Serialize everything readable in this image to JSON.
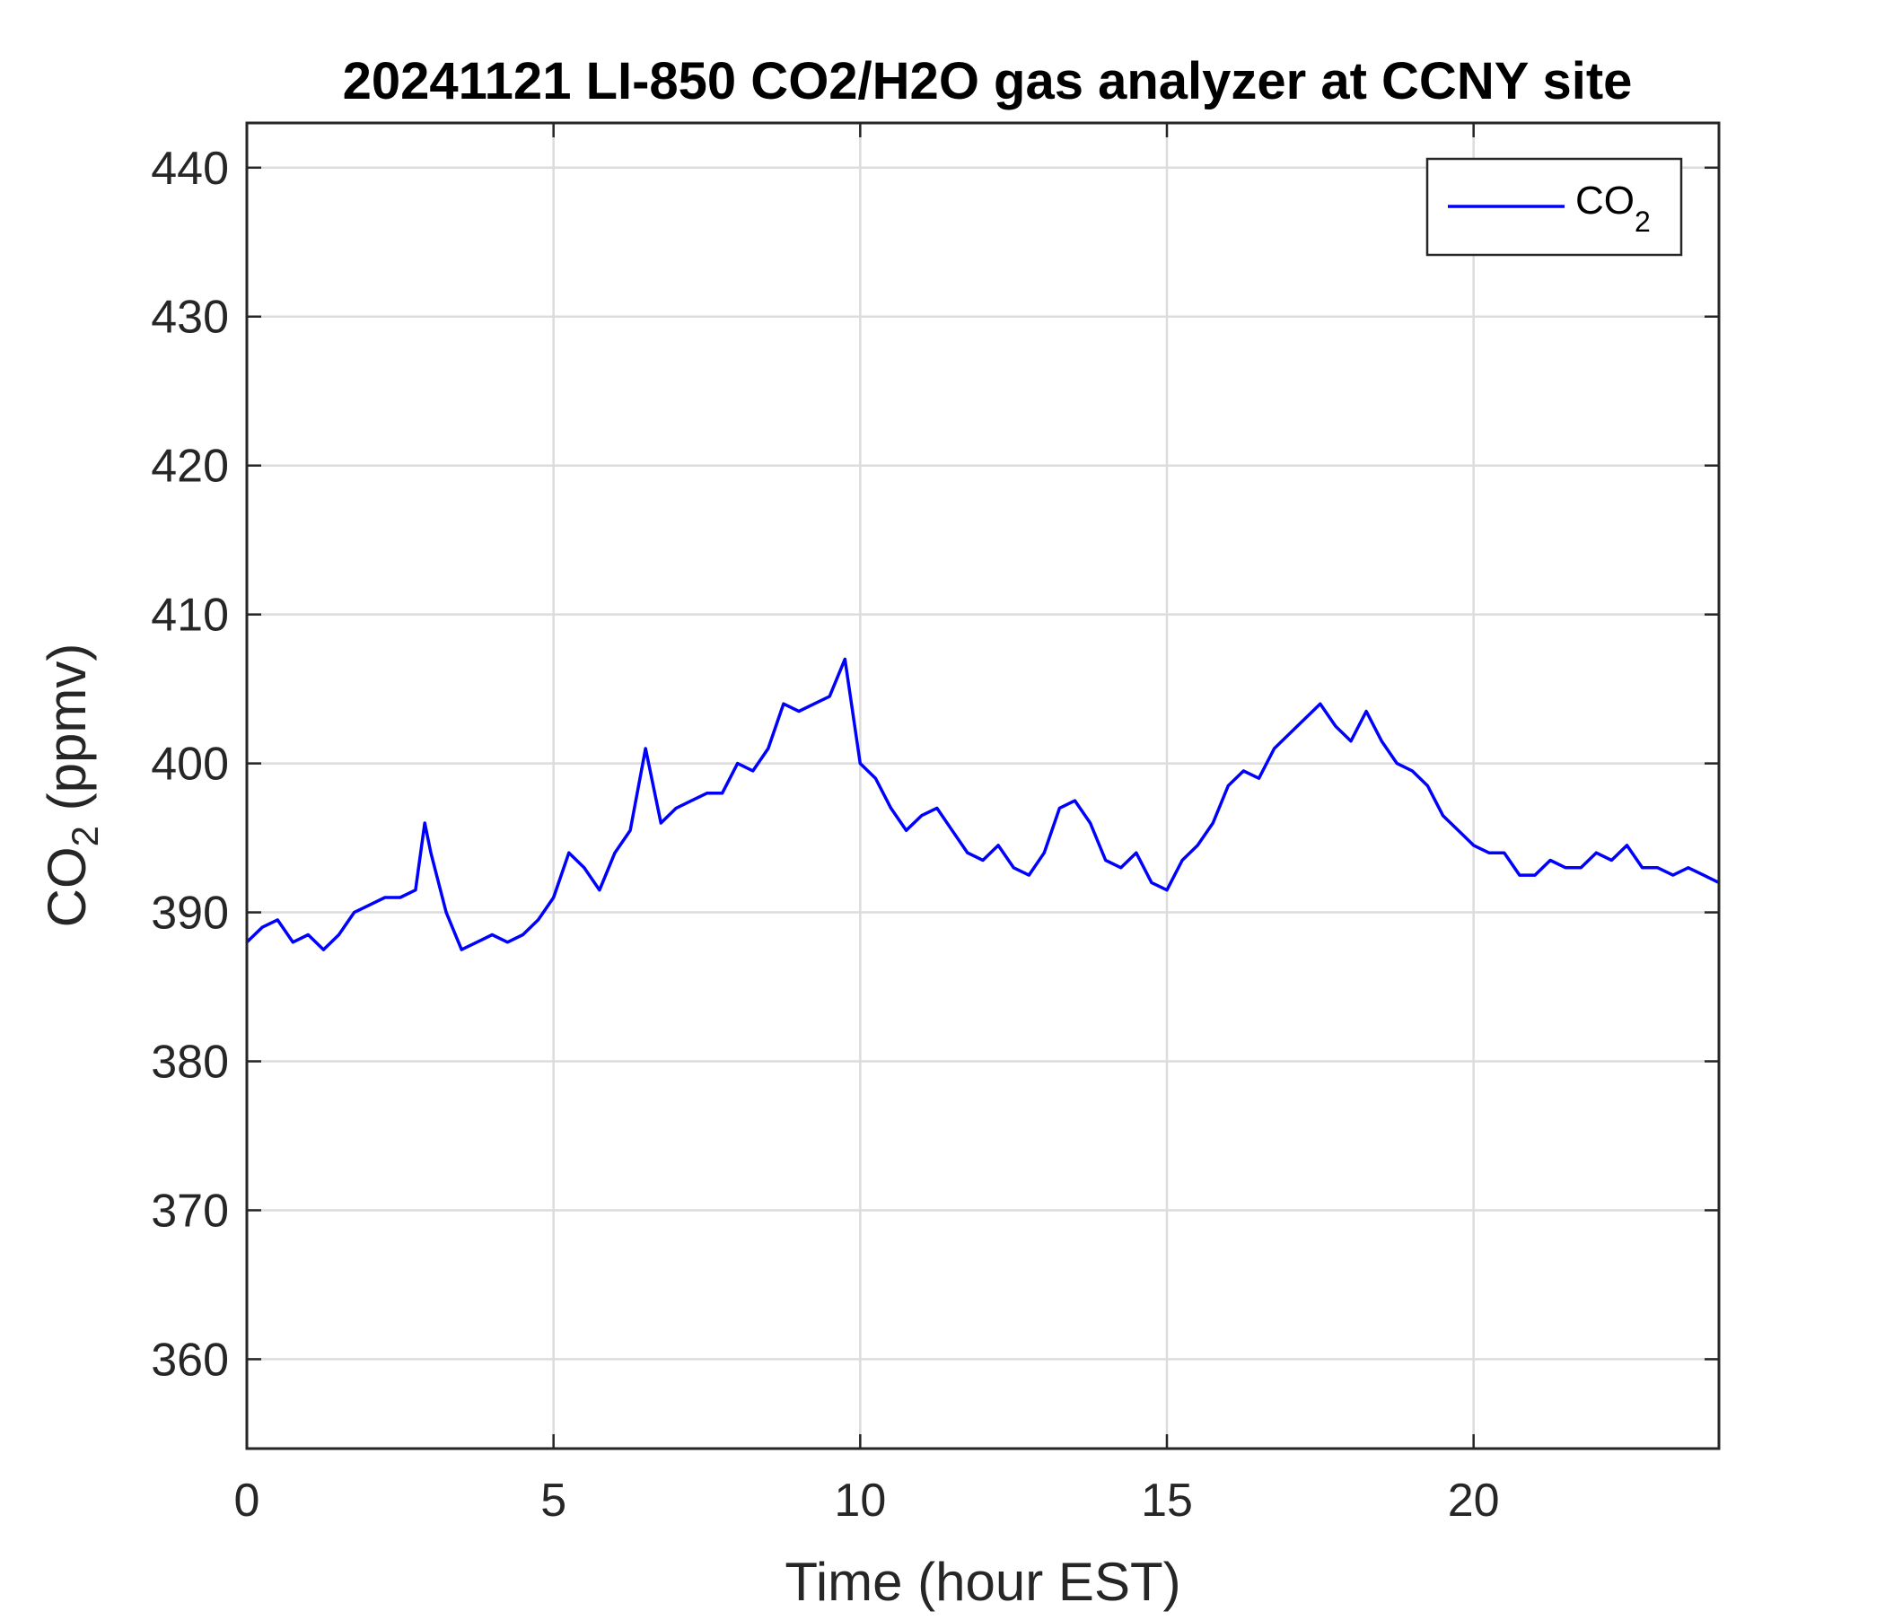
{
  "chart_data": {
    "type": "line",
    "title": "20241121 LI-850 CO2/H2O gas analyzer at CCNY site",
    "xlabel": "Time (hour EST)",
    "ylabel_main": "CO",
    "ylabel_sub": "2",
    "ylabel_units": " (ppmv)",
    "xlim": [
      0,
      24
    ],
    "ylim": [
      354,
      443
    ],
    "xticks": [
      0,
      5,
      10,
      15,
      20
    ],
    "yticks": [
      360,
      370,
      380,
      390,
      400,
      410,
      420,
      430,
      440
    ],
    "grid": true,
    "legend_position": "top-right",
    "series": [
      {
        "name_main": "CO",
        "name_sub": "2",
        "color": "#0000ff",
        "x": [
          0.0,
          0.25,
          0.5,
          0.75,
          1.0,
          1.25,
          1.5,
          1.75,
          2.0,
          2.25,
          2.5,
          2.75,
          2.9,
          3.0,
          3.25,
          3.5,
          3.75,
          4.0,
          4.25,
          4.5,
          4.75,
          5.0,
          5.25,
          5.5,
          5.75,
          6.0,
          6.25,
          6.5,
          6.75,
          7.0,
          7.25,
          7.5,
          7.75,
          8.0,
          8.25,
          8.5,
          8.75,
          9.0,
          9.25,
          9.5,
          9.75,
          10.0,
          10.25,
          10.5,
          10.75,
          11.0,
          11.25,
          11.5,
          11.75,
          12.0,
          12.25,
          12.5,
          12.75,
          13.0,
          13.25,
          13.5,
          13.75,
          14.0,
          14.25,
          14.5,
          14.75,
          15.0,
          15.25,
          15.5,
          15.75,
          16.0,
          16.25,
          16.5,
          16.75,
          17.0,
          17.25,
          17.5,
          17.75,
          18.0,
          18.25,
          18.5,
          18.75,
          19.0,
          19.25,
          19.5,
          19.75,
          20.0,
          20.25,
          20.5,
          20.75,
          21.0,
          21.25,
          21.5,
          21.75,
          22.0,
          22.25,
          22.5,
          22.75,
          23.0,
          23.25,
          23.5,
          23.75,
          24.0
        ],
        "y": [
          388,
          389,
          389.5,
          388,
          388.5,
          387.5,
          388.5,
          390,
          390.5,
          391,
          391,
          391.5,
          396,
          394,
          390,
          387.5,
          388,
          388.5,
          388,
          388.5,
          389.5,
          391,
          394,
          393,
          391.5,
          394,
          395.5,
          401,
          396,
          397,
          397.5,
          398,
          398,
          400,
          399.5,
          401,
          404,
          403.5,
          404,
          404.5,
          407,
          400,
          399,
          397,
          395.5,
          396.5,
          397,
          395.5,
          394,
          393.5,
          394.5,
          393,
          392.5,
          394,
          397,
          397.5,
          396,
          393.5,
          393,
          394,
          392,
          391.5,
          393.5,
          394.5,
          396,
          398.5,
          399.5,
          399,
          401,
          402,
          403,
          404,
          402.5,
          401.5,
          403.5,
          401.5,
          400,
          399.5,
          398.5,
          396.5,
          395.5,
          394.5,
          394,
          394,
          392.5,
          392.5,
          393.5,
          393,
          393,
          394,
          393.5,
          394.5,
          393,
          393,
          392.5,
          393,
          392.5,
          392
        ]
      }
    ]
  }
}
